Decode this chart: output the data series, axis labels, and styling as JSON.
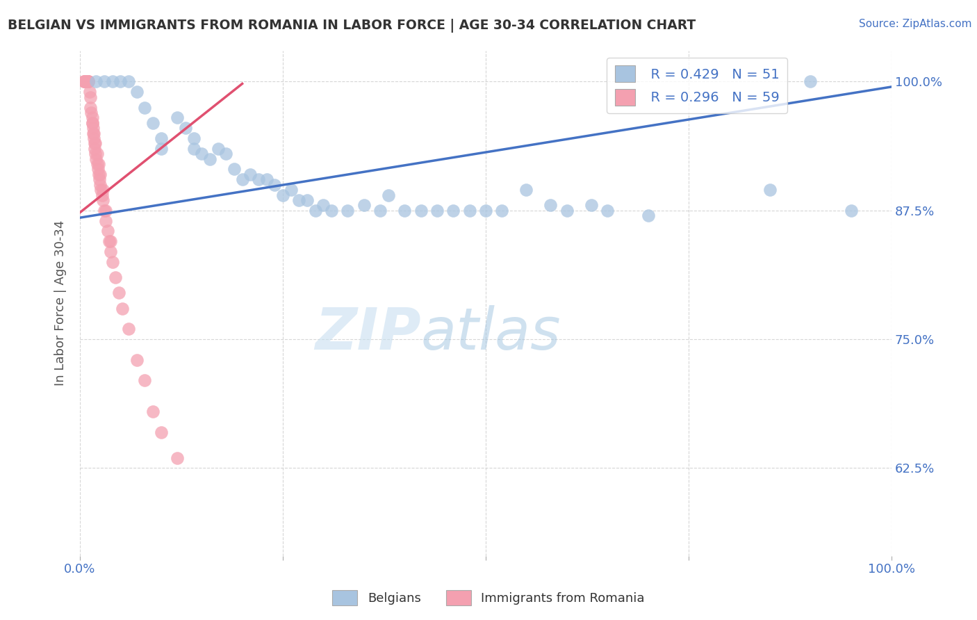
{
  "title": "BELGIAN VS IMMIGRANTS FROM ROMANIA IN LABOR FORCE | AGE 30-34 CORRELATION CHART",
  "source": "Source: ZipAtlas.com",
  "ylabel": "In Labor Force | Age 30-34",
  "legend_r_blue": "R = 0.429",
  "legend_n_blue": "N = 51",
  "legend_r_pink": "R = 0.296",
  "legend_n_pink": "N = 59",
  "legend_label_blue": "Belgians",
  "legend_label_pink": "Immigrants from Romania",
  "xlim": [
    0.0,
    1.0
  ],
  "ylim": [
    0.54,
    1.03
  ],
  "xticks": [
    0.0,
    0.25,
    0.5,
    0.75,
    1.0
  ],
  "yticks": [
    0.625,
    0.75,
    0.875,
    1.0
  ],
  "xticklabels": [
    "0.0%",
    "",
    "",
    "",
    "100.0%"
  ],
  "yticklabels": [
    "62.5%",
    "75.0%",
    "87.5%",
    "100.0%"
  ],
  "blue_color": "#a8c4e0",
  "pink_color": "#f4a0b0",
  "blue_line_color": "#4472c4",
  "pink_line_color": "#e05070",
  "watermark_zip": "ZIP",
  "watermark_atlas": "atlas",
  "blue_x": [
    0.02,
    0.03,
    0.04,
    0.05,
    0.06,
    0.07,
    0.08,
    0.09,
    0.1,
    0.1,
    0.12,
    0.13,
    0.14,
    0.14,
    0.15,
    0.16,
    0.17,
    0.18,
    0.19,
    0.2,
    0.21,
    0.22,
    0.23,
    0.24,
    0.25,
    0.26,
    0.27,
    0.28,
    0.29,
    0.3,
    0.31,
    0.33,
    0.35,
    0.37,
    0.38,
    0.4,
    0.42,
    0.44,
    0.46,
    0.48,
    0.5,
    0.52,
    0.55,
    0.58,
    0.6,
    0.63,
    0.65,
    0.7,
    0.85,
    0.9,
    0.95
  ],
  "blue_y": [
    1.0,
    1.0,
    1.0,
    1.0,
    1.0,
    0.99,
    0.975,
    0.96,
    0.945,
    0.935,
    0.965,
    0.955,
    0.945,
    0.935,
    0.93,
    0.925,
    0.935,
    0.93,
    0.915,
    0.905,
    0.91,
    0.905,
    0.905,
    0.9,
    0.89,
    0.895,
    0.885,
    0.885,
    0.875,
    0.88,
    0.875,
    0.875,
    0.88,
    0.875,
    0.89,
    0.875,
    0.875,
    0.875,
    0.875,
    0.875,
    0.875,
    0.875,
    0.895,
    0.88,
    0.875,
    0.88,
    0.875,
    0.87,
    0.895,
    1.0,
    0.875
  ],
  "pink_x": [
    0.005,
    0.005,
    0.005,
    0.007,
    0.007,
    0.007,
    0.008,
    0.008,
    0.009,
    0.009,
    0.01,
    0.01,
    0.01,
    0.01,
    0.012,
    0.013,
    0.013,
    0.014,
    0.015,
    0.015,
    0.016,
    0.016,
    0.017,
    0.018,
    0.018,
    0.019,
    0.02,
    0.021,
    0.022,
    0.023,
    0.024,
    0.025,
    0.026,
    0.027,
    0.028,
    0.03,
    0.032,
    0.034,
    0.036,
    0.038,
    0.04,
    0.044,
    0.048,
    0.052,
    0.06,
    0.07,
    0.08,
    0.09,
    0.1,
    0.12,
    0.015,
    0.017,
    0.019,
    0.021,
    0.023,
    0.025,
    0.028,
    0.032,
    0.038
  ],
  "pink_y": [
    1.0,
    1.0,
    1.0,
    1.0,
    1.0,
    1.0,
    1.0,
    1.0,
    1.0,
    1.0,
    1.0,
    1.0,
    1.0,
    1.0,
    0.99,
    0.985,
    0.975,
    0.97,
    0.965,
    0.96,
    0.955,
    0.95,
    0.945,
    0.94,
    0.935,
    0.93,
    0.925,
    0.92,
    0.915,
    0.91,
    0.905,
    0.9,
    0.895,
    0.89,
    0.885,
    0.875,
    0.865,
    0.855,
    0.845,
    0.835,
    0.825,
    0.81,
    0.795,
    0.78,
    0.76,
    0.73,
    0.71,
    0.68,
    0.66,
    0.635,
    0.96,
    0.95,
    0.94,
    0.93,
    0.92,
    0.91,
    0.895,
    0.875,
    0.845
  ],
  "background_color": "#ffffff",
  "blue_trendline_x": [
    0.0,
    1.0
  ],
  "blue_trendline_y": [
    0.868,
    0.995
  ],
  "pink_trendline_x": [
    0.0,
    0.2
  ],
  "pink_trendline_y": [
    0.873,
    0.998
  ]
}
